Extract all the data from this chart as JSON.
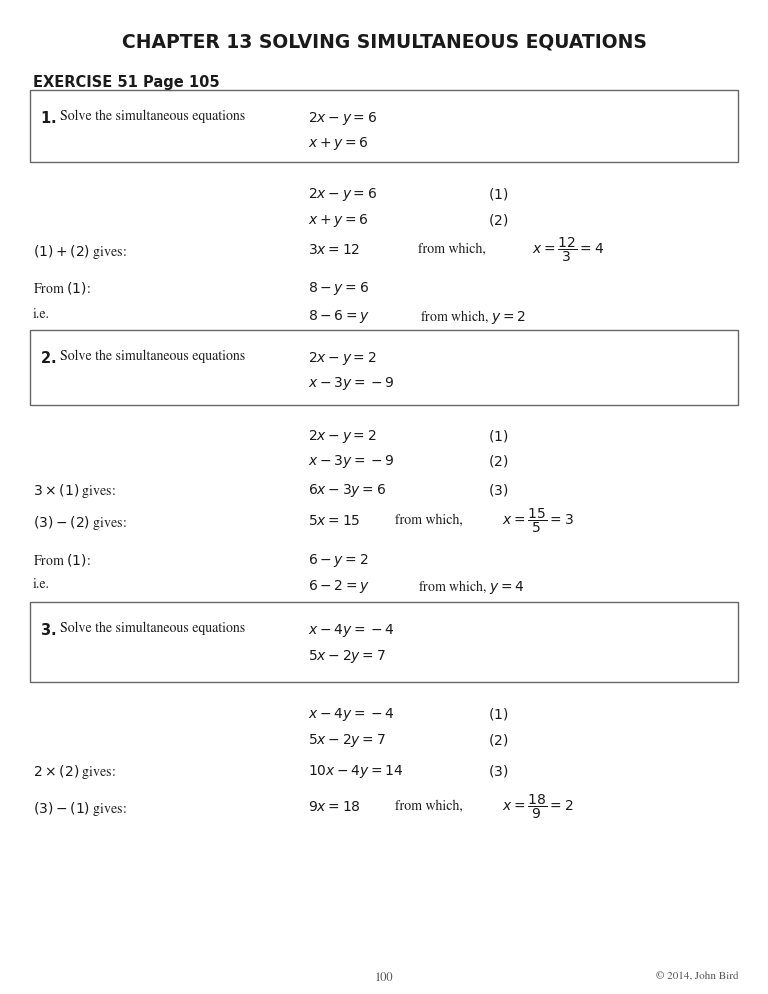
{
  "title": "CHAPTER 13 SOLVING SIMULTANEOUS EQUATIONS",
  "exercise_header": "EXERCISE 51 Page 105",
  "background_color": "#ffffff",
  "text_color": "#1a1a1a",
  "page_number": "100",
  "copyright": "© 2014, John Bird"
}
